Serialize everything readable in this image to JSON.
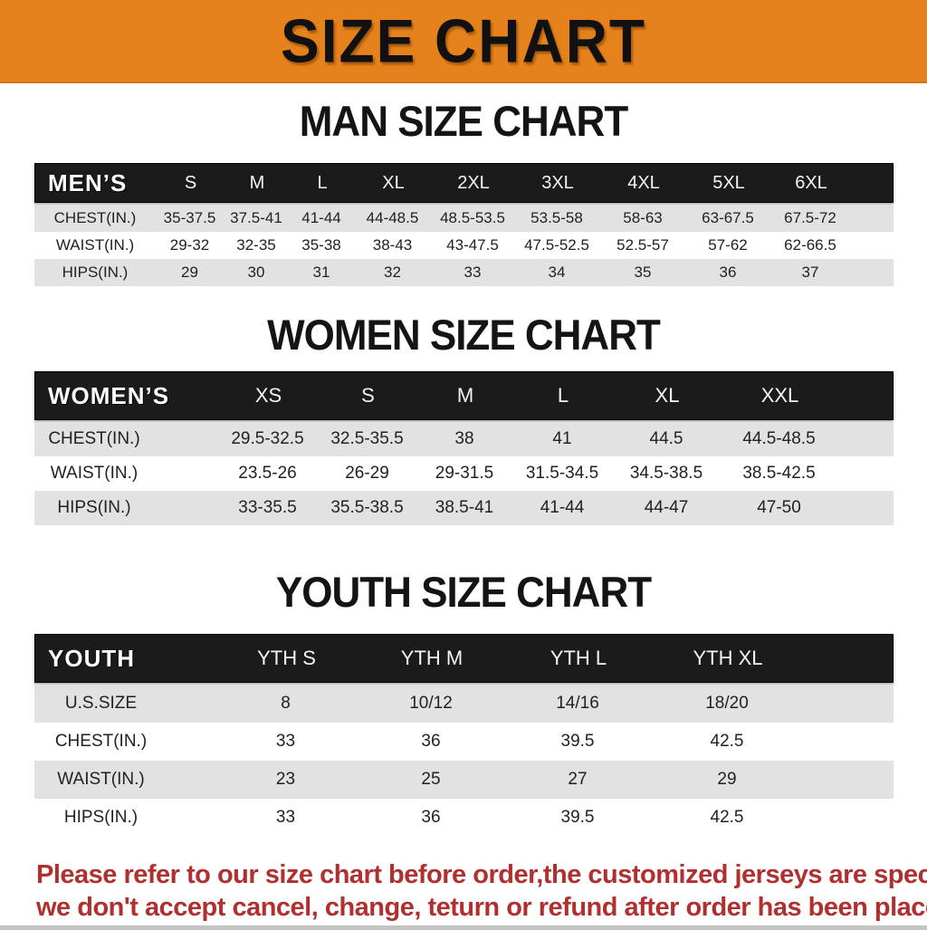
{
  "banner": {
    "title": "SIZE CHART"
  },
  "sections": {
    "men": {
      "heading": "MAN SIZE CHART",
      "header": [
        "MEN’S",
        "S",
        "M",
        "L",
        "XL",
        "2XL",
        "3XL",
        "4XL",
        "5XL",
        "6XL"
      ],
      "rows": [
        {
          "label": "CHEST(IN.)",
          "values": [
            "35-37.5",
            "37.5-41",
            "41-44",
            "44-48.5",
            "48.5-53.5",
            "53.5-58",
            "58-63",
            "63-67.5",
            "67.5-72"
          ]
        },
        {
          "label": "WAIST(IN.)",
          "values": [
            "29-32",
            "32-35",
            "35-38",
            "38-43",
            "43-47.5",
            "47.5-52.5",
            "52.5-57",
            "57-62",
            "62-66.5"
          ]
        },
        {
          "label": "HIPS(IN.)",
          "values": [
            "29",
            "30",
            "31",
            "32",
            "33",
            "34",
            "35",
            "36",
            "37"
          ]
        }
      ]
    },
    "women": {
      "heading": "WOMEN SIZE CHART",
      "header": [
        "WOMEN’S",
        "XS",
        "S",
        "M",
        "L",
        "XL",
        "XXL"
      ],
      "rows": [
        {
          "label": "CHEST(IN.)",
          "values": [
            "29.5-32.5",
            "32.5-35.5",
            "38",
            "41",
            "44.5",
            "44.5-48.5"
          ]
        },
        {
          "label": "WAIST(IN.)",
          "values": [
            "23.5-26",
            "26-29",
            "29-31.5",
            "31.5-34.5",
            "34.5-38.5",
            "38.5-42.5"
          ]
        },
        {
          "label": "HIPS(IN.)",
          "values": [
            "33-35.5",
            "35.5-38.5",
            "38.5-41",
            "41-44",
            "44-47",
            "47-50"
          ]
        }
      ]
    },
    "youth": {
      "heading": "YOUTH SIZE CHART",
      "header": [
        "YOUTH",
        "YTH S",
        "YTH M",
        "YTH L",
        "YTH XL"
      ],
      "rows": [
        {
          "label": "U.S.SIZE",
          "values": [
            "8",
            "10/12",
            "14/16",
            "18/20"
          ]
        },
        {
          "label": "CHEST(IN.)",
          "values": [
            "33",
            "36",
            "39.5",
            "42.5"
          ]
        },
        {
          "label": "WAIST(IN.)",
          "values": [
            "23",
            "25",
            "27",
            "29"
          ]
        },
        {
          "label": "HIPS(IN.)",
          "values": [
            "33",
            "36",
            "39.5",
            "42.5"
          ]
        }
      ]
    }
  },
  "footer": {
    "line1": "Please refer to our size chart before order,the customized jerseys are special products,",
    "line2": "we don't accept cancel, change, teturn or refund after order has been placed!"
  },
  "colors": {
    "banner_bg": "#E6821C",
    "bar_bg": "#1B1B1B",
    "bar_text": "#FFFFFF",
    "row_stripe": "#E2E2E2",
    "text": "#1C1C1C",
    "notice": "#B03030",
    "strip": "#C4C4C4"
  }
}
